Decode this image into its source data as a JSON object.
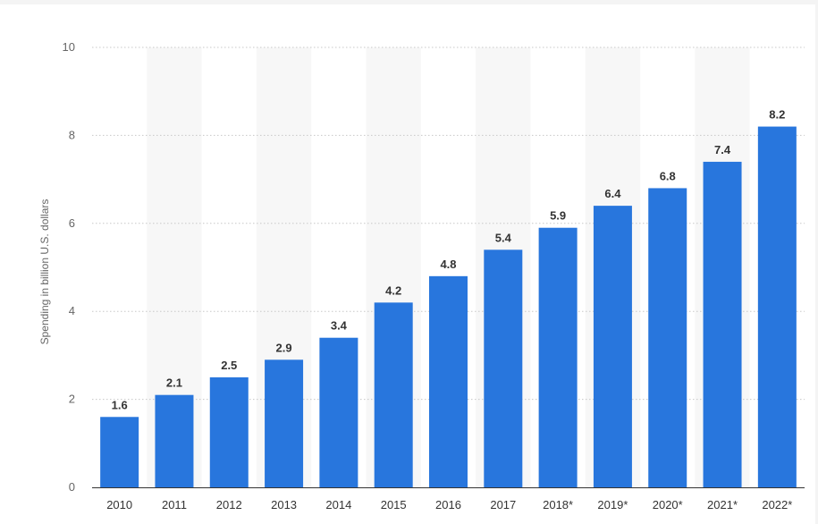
{
  "chart_data": {
    "type": "bar",
    "categories": [
      "2010",
      "2011",
      "2012",
      "2013",
      "2014",
      "2015",
      "2016",
      "2017",
      "2018*",
      "2019*",
      "2020*",
      "2021*",
      "2022*"
    ],
    "values": [
      1.6,
      2.1,
      2.5,
      2.9,
      3.4,
      4.2,
      4.8,
      5.4,
      5.9,
      6.4,
      6.8,
      7.4,
      8.2
    ],
    "data_labels": [
      "1.6",
      "2.1",
      "2.5",
      "2.9",
      "3.4",
      "4.2",
      "4.8",
      "5.4",
      "5.9",
      "6.4",
      "6.8",
      "7.4",
      "8.2"
    ],
    "ylabel": "Spending in billion U.S. dollars",
    "ylim": [
      0,
      10
    ],
    "yticks": [
      0,
      2,
      4,
      6,
      8,
      10
    ],
    "grid": true,
    "legend": "none",
    "colors": {
      "bar": "#2876dd",
      "band": "#f7f7f7",
      "grid": "#c8c8c8",
      "axis": "#333333"
    }
  }
}
